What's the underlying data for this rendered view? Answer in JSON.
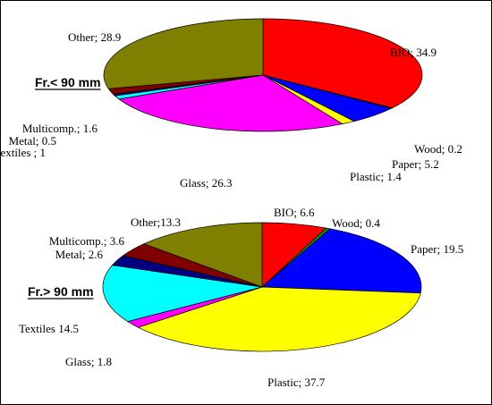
{
  "chart_data": [
    {
      "type": "pie",
      "title": "Fr.< 90 mm",
      "slices": [
        {
          "name": "BIO",
          "sep": "; ",
          "value": 34.9,
          "color": "#FF0000",
          "side": "#B00000"
        },
        {
          "name": "Wood",
          "sep": "; ",
          "value": 0.2,
          "color": "#00A000",
          "side": "#006600"
        },
        {
          "name": "Paper",
          "sep": "; ",
          "value": 5.2,
          "color": "#0000FF",
          "side": "#0000A8"
        },
        {
          "name": "Plastic",
          "sep": "; ",
          "value": 1.4,
          "color": "#FFFF00",
          "side": "#B8B800"
        },
        {
          "name": "Glass",
          "sep": "; ",
          "value": 26.3,
          "color": "#FF00FF",
          "side": "#B000B0"
        },
        {
          "name": "Textiles",
          "sep": " ; ",
          "value": 1,
          "color": "#00FFFF",
          "side": "#00AAAA"
        },
        {
          "name": "Metal",
          "sep": "; ",
          "value": 0.5,
          "color": "#000080",
          "side": "#000050"
        },
        {
          "name": "Multicomp.",
          "sep": "; ",
          "value": 1.6,
          "color": "#800000",
          "side": "#500000"
        },
        {
          "name": "Other",
          "sep": "; ",
          "value": 28.9,
          "color": "#808000",
          "side": "#505000"
        }
      ]
    },
    {
      "type": "pie",
      "title": "Fr.> 90 mm",
      "slices": [
        {
          "name": "BIO",
          "sep": "; ",
          "value": 6.6,
          "color": "#FF0000",
          "side": "#B00000"
        },
        {
          "name": "Wood",
          "sep": "; ",
          "value": 0.4,
          "color": "#00A000",
          "side": "#006600"
        },
        {
          "name": "Paper",
          "sep": "; ",
          "value": 19.5,
          "color": "#0000FF",
          "side": "#0000A8"
        },
        {
          "name": "Plastic",
          "sep": "; ",
          "value": 37.7,
          "color": "#FFFF00",
          "side": "#B8B800"
        },
        {
          "name": "Glass",
          "sep": "; ",
          "value": 1.8,
          "color": "#FF00FF",
          "side": "#B000B0"
        },
        {
          "name": "Textiles",
          "sep": " ",
          "value": 14.5,
          "color": "#00FFFF",
          "side": "#00AAAA"
        },
        {
          "name": "Metal",
          "sep": "; ",
          "value": 2.6,
          "color": "#000080",
          "side": "#000050"
        },
        {
          "name": "Multicomp.",
          "sep": "; ",
          "value": 3.6,
          "color": "#800000",
          "side": "#500000"
        },
        {
          "name": "Other",
          "sep": ";",
          "value": 13.3,
          "color": "#808000",
          "side": "#505000"
        }
      ]
    }
  ]
}
